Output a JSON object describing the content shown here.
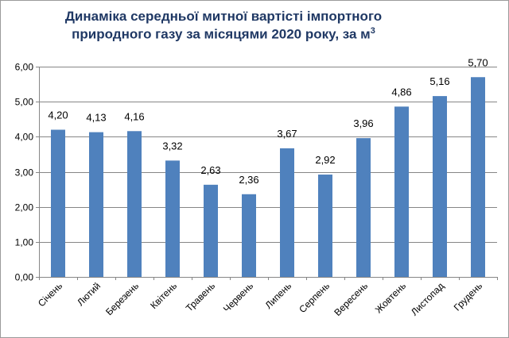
{
  "chart_data": {
    "type": "bar",
    "title_line1": "Динаміка  середньої митної вартісті імпортного",
    "title_line2": "природного газу за місяцями 2020 року, за м",
    "title_sup": "3",
    "categories": [
      "Січень",
      "Лютий",
      "Березень",
      "Квітень",
      "Травень",
      "Червень",
      "Липень",
      "Серпень",
      "Вересень",
      "Жовтень",
      "Листопад",
      "Грудень"
    ],
    "values": [
      4.2,
      4.13,
      4.16,
      3.32,
      2.63,
      2.36,
      3.67,
      2.92,
      3.96,
      4.86,
      5.16,
      5.7
    ],
    "value_labels": [
      "4,20",
      "4,13",
      "4,16",
      "3,32",
      "2,63",
      "2,36",
      "3,67",
      "2,92",
      "3,96",
      "4,86",
      "5,16",
      "5,70"
    ],
    "y_ticks": [
      "0,00",
      "1,00",
      "2,00",
      "3,00",
      "4,00",
      "5,00",
      "6,00"
    ],
    "ylim": [
      0,
      6
    ],
    "xlabel": "",
    "ylabel": "",
    "grid": true,
    "legend": "none",
    "colors": {
      "bar": "#4f81bd",
      "grid": "#868686",
      "title": "#1f3864",
      "text": "#000000"
    }
  }
}
